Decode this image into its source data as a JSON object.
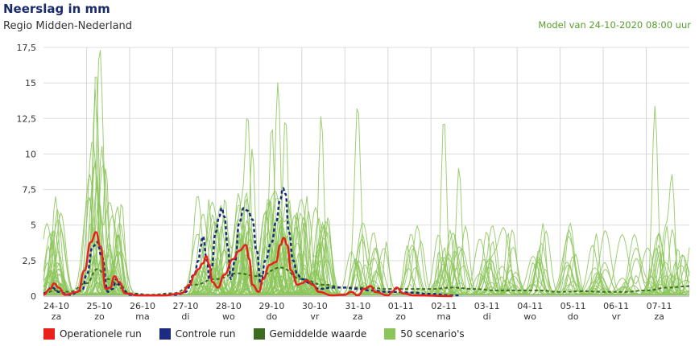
{
  "header": {
    "title": "Neerslag in mm",
    "subtitle": "Regio Midden-Nederland",
    "model_run": "Model van 24-10-2020 08:00 uur"
  },
  "legend": {
    "items": [
      {
        "label": "Operationele run",
        "color": "#e8211c"
      },
      {
        "label": "Controle run",
        "color": "#1a2b80"
      },
      {
        "label": "Gemiddelde waarde",
        "color": "#3d6b1f"
      },
      {
        "label": "50 scenario's",
        "color": "#8cc55a"
      }
    ]
  },
  "chart_data": {
    "type": "line",
    "ylim": [
      0,
      17.5
    ],
    "y_ticks": [
      "0",
      "2,5",
      "5",
      "7,5",
      "10",
      "12,5",
      "15",
      "17,5"
    ],
    "xlim": [
      0,
      15
    ],
    "x_ticks": [
      {
        "date": "24-10",
        "day": "za"
      },
      {
        "date": "25-10",
        "day": "zo"
      },
      {
        "date": "26-10",
        "day": "ma"
      },
      {
        "date": "27-10",
        "day": "di"
      },
      {
        "date": "28-10",
        "day": "wo"
      },
      {
        "date": "29-10",
        "day": "do"
      },
      {
        "date": "30-10",
        "day": "vr"
      },
      {
        "date": "31-10",
        "day": "za"
      },
      {
        "date": "01-11",
        "day": "zo"
      },
      {
        "date": "02-11",
        "day": "ma"
      },
      {
        "date": "03-11",
        "day": "di"
      },
      {
        "date": "04-11",
        "day": "wo"
      },
      {
        "date": "05-11",
        "day": "do"
      },
      {
        "date": "06-11",
        "day": "vr"
      },
      {
        "date": "07-11",
        "day": "za"
      }
    ],
    "series": [
      {
        "name": "Operationele run",
        "color": "#e8211c",
        "dash": false,
        "width": 2.5,
        "points": [
          [
            0,
            0.1
          ],
          [
            0.15,
            0.5
          ],
          [
            0.25,
            0.9
          ],
          [
            0.35,
            0.6
          ],
          [
            0.5,
            0.1
          ],
          [
            0.8,
            0.3
          ],
          [
            0.95,
            1.8
          ],
          [
            1.1,
            3.8
          ],
          [
            1.22,
            4.5
          ],
          [
            1.32,
            3.5
          ],
          [
            1.45,
            0.5
          ],
          [
            1.55,
            0.6
          ],
          [
            1.65,
            1.4
          ],
          [
            1.75,
            1.0
          ],
          [
            1.9,
            0.2
          ],
          [
            2.2,
            0.05
          ],
          [
            2.8,
            0.05
          ],
          [
            3.2,
            0.2
          ],
          [
            3.4,
            0.8
          ],
          [
            3.5,
            1.5
          ],
          [
            3.6,
            1.9
          ],
          [
            3.7,
            2.3
          ],
          [
            3.78,
            2.8
          ],
          [
            3.85,
            2.2
          ],
          [
            3.92,
            1.0
          ],
          [
            4.05,
            0.6
          ],
          [
            4.2,
            1.5
          ],
          [
            4.4,
            2.6
          ],
          [
            4.55,
            3.2
          ],
          [
            4.7,
            3.6
          ],
          [
            4.78,
            2.6
          ],
          [
            4.85,
            0.8
          ],
          [
            5.0,
            0.3
          ],
          [
            5.1,
            1.2
          ],
          [
            5.25,
            2.2
          ],
          [
            5.4,
            2.4
          ],
          [
            5.5,
            3.6
          ],
          [
            5.58,
            4.1
          ],
          [
            5.66,
            3.6
          ],
          [
            5.75,
            1.8
          ],
          [
            5.9,
            0.8
          ],
          [
            6.0,
            0.9
          ],
          [
            6.12,
            1.1
          ],
          [
            6.25,
            0.8
          ],
          [
            6.4,
            0.3
          ],
          [
            6.7,
            0.05
          ],
          [
            7.0,
            0.1
          ],
          [
            7.15,
            0.3
          ],
          [
            7.3,
            0.05
          ],
          [
            7.45,
            0.5
          ],
          [
            7.6,
            0.7
          ],
          [
            7.7,
            0.3
          ],
          [
            8.0,
            0.05
          ],
          [
            8.1,
            0.3
          ],
          [
            8.2,
            0.6
          ],
          [
            8.35,
            0.2
          ],
          [
            8.6,
            0.05
          ],
          [
            9.5,
            0.0
          ]
        ]
      },
      {
        "name": "Controle run",
        "color": "#1a2b80",
        "dash": true,
        "width": 2.5,
        "points": [
          [
            0,
            0.2
          ],
          [
            0.2,
            0.6
          ],
          [
            0.35,
            0.3
          ],
          [
            0.6,
            0.1
          ],
          [
            0.9,
            0.4
          ],
          [
            1.0,
            1.5
          ],
          [
            1.15,
            3.5
          ],
          [
            1.25,
            3.8
          ],
          [
            1.35,
            2.8
          ],
          [
            1.5,
            0.3
          ],
          [
            1.6,
            0.5
          ],
          [
            1.7,
            1.2
          ],
          [
            1.8,
            0.6
          ],
          [
            2.0,
            0.1
          ],
          [
            2.5,
            0.05
          ],
          [
            3.1,
            0.1
          ],
          [
            3.3,
            0.3
          ],
          [
            3.5,
            1.5
          ],
          [
            3.6,
            2.5
          ],
          [
            3.65,
            3.5
          ],
          [
            3.7,
            4.2
          ],
          [
            3.8,
            2.5
          ],
          [
            3.85,
            1.2
          ],
          [
            3.9,
            2.0
          ],
          [
            4.0,
            4.5
          ],
          [
            4.08,
            5.6
          ],
          [
            4.14,
            6.2
          ],
          [
            4.2,
            5.6
          ],
          [
            4.28,
            3.5
          ],
          [
            4.35,
            1.2
          ],
          [
            4.45,
            2.5
          ],
          [
            4.55,
            5.2
          ],
          [
            4.65,
            6.2
          ],
          [
            4.75,
            6.0
          ],
          [
            4.85,
            5.4
          ],
          [
            4.95,
            3.2
          ],
          [
            5.05,
            0.8
          ],
          [
            5.15,
            2.5
          ],
          [
            5.3,
            3.8
          ],
          [
            5.4,
            5.2
          ],
          [
            5.5,
            6.8
          ],
          [
            5.56,
            7.6
          ],
          [
            5.62,
            7.2
          ],
          [
            5.7,
            4.5
          ],
          [
            5.8,
            2.5
          ],
          [
            5.9,
            1.5
          ],
          [
            6.0,
            1.2
          ],
          [
            6.2,
            0.9
          ],
          [
            6.4,
            0.5
          ],
          [
            6.7,
            0.6
          ],
          [
            7.0,
            0.6
          ],
          [
            7.3,
            0.5
          ],
          [
            7.6,
            0.4
          ],
          [
            8.0,
            0.3
          ],
          [
            8.5,
            0.25
          ],
          [
            9.0,
            0.15
          ],
          [
            9.5,
            0.05
          ],
          [
            9.7,
            0.05
          ]
        ]
      },
      {
        "name": "Gemiddelde waarde",
        "color": "#3d6b1f",
        "dash": true,
        "width": 2,
        "points": [
          [
            0,
            0.2
          ],
          [
            0.3,
            0.4
          ],
          [
            0.6,
            0.3
          ],
          [
            1.0,
            0.9
          ],
          [
            1.25,
            1.9
          ],
          [
            1.5,
            1.2
          ],
          [
            1.75,
            0.8
          ],
          [
            2.0,
            0.2
          ],
          [
            2.5,
            0.1
          ],
          [
            3.0,
            0.2
          ],
          [
            3.5,
            0.8
          ],
          [
            4.0,
            1.2
          ],
          [
            4.5,
            1.6
          ],
          [
            5.0,
            1.4
          ],
          [
            5.5,
            2.0
          ],
          [
            6.0,
            1.2
          ],
          [
            6.5,
            0.8
          ],
          [
            7.0,
            0.6
          ],
          [
            7.5,
            0.6
          ],
          [
            8.0,
            0.5
          ],
          [
            8.5,
            0.5
          ],
          [
            9.0,
            0.5
          ],
          [
            9.5,
            0.6
          ],
          [
            10.0,
            0.5
          ],
          [
            10.5,
            0.4
          ],
          [
            11.0,
            0.4
          ],
          [
            11.5,
            0.4
          ],
          [
            12.0,
            0.3
          ],
          [
            12.5,
            0.35
          ],
          [
            13.0,
            0.3
          ],
          [
            13.5,
            0.3
          ],
          [
            14.0,
            0.4
          ],
          [
            14.5,
            0.6
          ],
          [
            15.0,
            0.7
          ]
        ]
      }
    ],
    "scenario_count": 50,
    "scenario_color": "#8cc55a",
    "scenario_peaks_sample": [
      [
        1.22,
        16.0
      ],
      [
        1.2,
        14.5
      ],
      [
        1.3,
        13.0
      ],
      [
        1.45,
        9.0
      ],
      [
        4.75,
        10.8
      ],
      [
        4.85,
        10.2
      ],
      [
        5.3,
        10.8
      ],
      [
        5.45,
        12.8
      ],
      [
        5.62,
        12.2
      ],
      [
        6.45,
        12.7
      ],
      [
        7.3,
        9.4
      ],
      [
        9.3,
        12.6
      ],
      [
        9.65,
        9.0
      ],
      [
        14.2,
        13.1
      ],
      [
        14.6,
        8.0
      ]
    ]
  }
}
